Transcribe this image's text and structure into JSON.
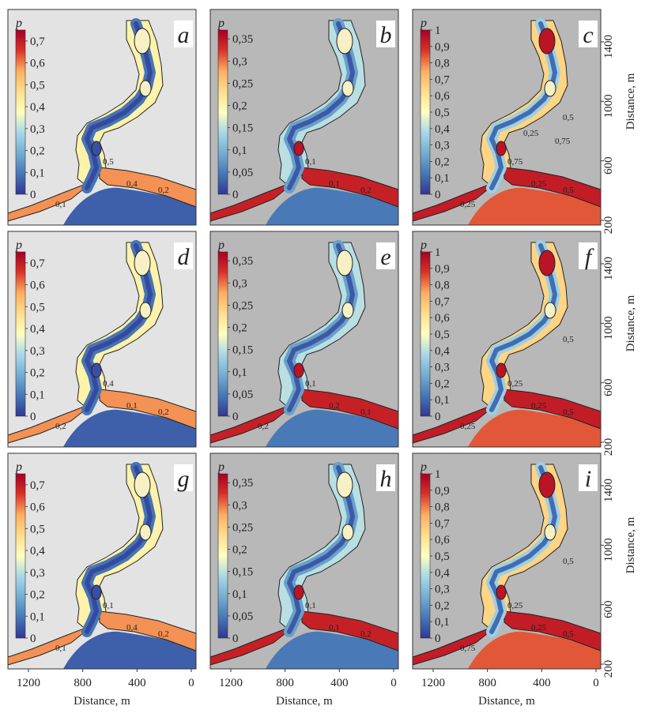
{
  "chart_data": {
    "type": "heatmap",
    "layout": "3x3 panel grid",
    "colormap": "RdYlBu_r (blue = low, red = high)",
    "axes": {
      "xlabel": "Distance, m",
      "ylabel": "Distance, m",
      "xticks": [
        "1200",
        "800",
        "400",
        "0"
      ],
      "yticks": [
        "200",
        "600",
        "1000",
        "1400"
      ],
      "x_reversed": true
    },
    "colorbar_label": "p",
    "columns": [
      {
        "ticks": [
          "0",
          "0,1",
          "0,2",
          "0,3",
          "0,4",
          "0,5",
          "0,6",
          "0,7"
        ],
        "range": [
          0,
          0.75
        ]
      },
      {
        "ticks": [
          "0",
          "0,05",
          "0,1",
          "0,15",
          "0,2",
          "0,25",
          "0,3",
          "0,35"
        ],
        "range": [
          0,
          0.37
        ]
      },
      {
        "ticks": [
          "0",
          "0,1",
          "0,2",
          "0,3",
          "0,4",
          "0,5",
          "0,6",
          "0,7",
          "0,8",
          "0,9",
          "1"
        ],
        "range": [
          0,
          1
        ]
      }
    ],
    "panels": [
      {
        "tag": "a",
        "column": 0,
        "contour_labels": [
          "0,4",
          "0,2",
          "0,5",
          "0,1"
        ],
        "background": "#e3e3e3",
        "sea_level": 0.08
      },
      {
        "tag": "b",
        "column": 1,
        "contour_labels": [
          "0,1",
          "0,2",
          "0,1"
        ],
        "background": "#b8b8b8",
        "sea_level": 0.13
      },
      {
        "tag": "c",
        "column": 2,
        "contour_labels": [
          "0,25",
          "0,5",
          "0,75",
          "0,25",
          "0,5",
          "0,75",
          "0,25"
        ],
        "background": "#b8b8b8",
        "sea_level": 0.84
      },
      {
        "tag": "d",
        "column": 0,
        "contour_labels": [
          "0,1",
          "0,2",
          "0,4",
          "0,2"
        ],
        "background": "#e3e3e3",
        "sea_level": 0.08
      },
      {
        "tag": "e",
        "column": 1,
        "contour_labels": [
          "0,2",
          "0,1",
          "0,1",
          "0,2"
        ],
        "background": "#b8b8b8",
        "sea_level": 0.13
      },
      {
        "tag": "f",
        "column": 2,
        "contour_labels": [
          "0,25",
          "0,5",
          "0,25",
          "0,25",
          "0,5"
        ],
        "background": "#b8b8b8",
        "sea_level": 0.84
      },
      {
        "tag": "g",
        "column": 0,
        "contour_labels": [
          "0,4",
          "0,2",
          "0,1",
          "0,1"
        ],
        "background": "#e3e3e3",
        "sea_level": 0.08
      },
      {
        "tag": "h",
        "column": 1,
        "contour_labels": [
          "0,1",
          "0,2",
          "0,1"
        ],
        "background": "#b8b8b8",
        "sea_level": 0.13
      },
      {
        "tag": "i",
        "column": 2,
        "contour_labels": [
          "0,25",
          "0,5",
          "0,25",
          "0,75",
          "0,5"
        ],
        "background": "#b8b8b8",
        "sea_level": 0.84
      }
    ]
  }
}
